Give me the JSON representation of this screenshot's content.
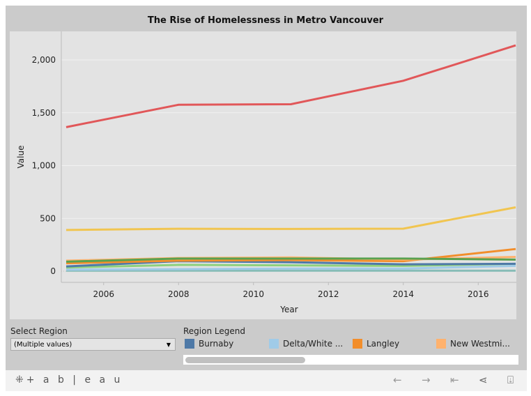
{
  "chart_data": {
    "type": "line",
    "title": "The Rise of Homelessness in Metro Vancouver",
    "xlabel": "Year",
    "ylabel": "Value",
    "x": [
      2005,
      2008,
      2011,
      2014,
      2017
    ],
    "xticks": [
      "2006",
      "2008",
      "2010",
      "2012",
      "2014",
      "2016"
    ],
    "yticks": [
      "0",
      "500",
      "1,000",
      "1,500",
      "2,000"
    ],
    "ylim": [
      -100,
      2250
    ],
    "xlim": [
      2005,
      2017
    ],
    "grid": true,
    "series": [
      {
        "color": "#e15759",
        "values": [
          1364,
          1576,
          1581,
          1803,
          2138
        ]
      },
      {
        "color": "#f1c550",
        "values": [
          390,
          402,
          400,
          403,
          605
        ]
      },
      {
        "color": "#59a14f",
        "values": [
          90,
          120,
          120,
          120,
          110
        ]
      },
      {
        "name": "New Westmi...",
        "color": "#ffb26e",
        "values": [
          100,
          125,
          130,
          110,
          135
        ]
      },
      {
        "name": "Langley",
        "color": "#f28e2b",
        "values": [
          75,
          100,
          105,
          95,
          210
        ]
      },
      {
        "name": "Burnaby",
        "color": "#4e79a7",
        "values": [
          45,
          95,
          85,
          65,
          70
        ]
      },
      {
        "color": "#8cd17d",
        "values": [
          35,
          60,
          55,
          50,
          70
        ]
      },
      {
        "name": "Delta/White ...",
        "color": "#a0cbe8",
        "values": [
          15,
          20,
          25,
          25,
          50
        ]
      },
      {
        "color": "#86bcb6",
        "values": [
          5,
          5,
          5,
          5,
          5
        ]
      }
    ]
  },
  "filter": {
    "label": "Select Region",
    "value": "(Multiple values)"
  },
  "legend": {
    "title": "Region Legend",
    "items": [
      {
        "label": "Burnaby",
        "color": "#4e79a7"
      },
      {
        "label": "Delta/White ...",
        "color": "#a0cbe8"
      },
      {
        "label": "Langley",
        "color": "#f28e2b"
      },
      {
        "label": "New Westmi...",
        "color": "#ffb26e"
      }
    ]
  },
  "footer": {
    "logo": "+ a b | e a u"
  }
}
